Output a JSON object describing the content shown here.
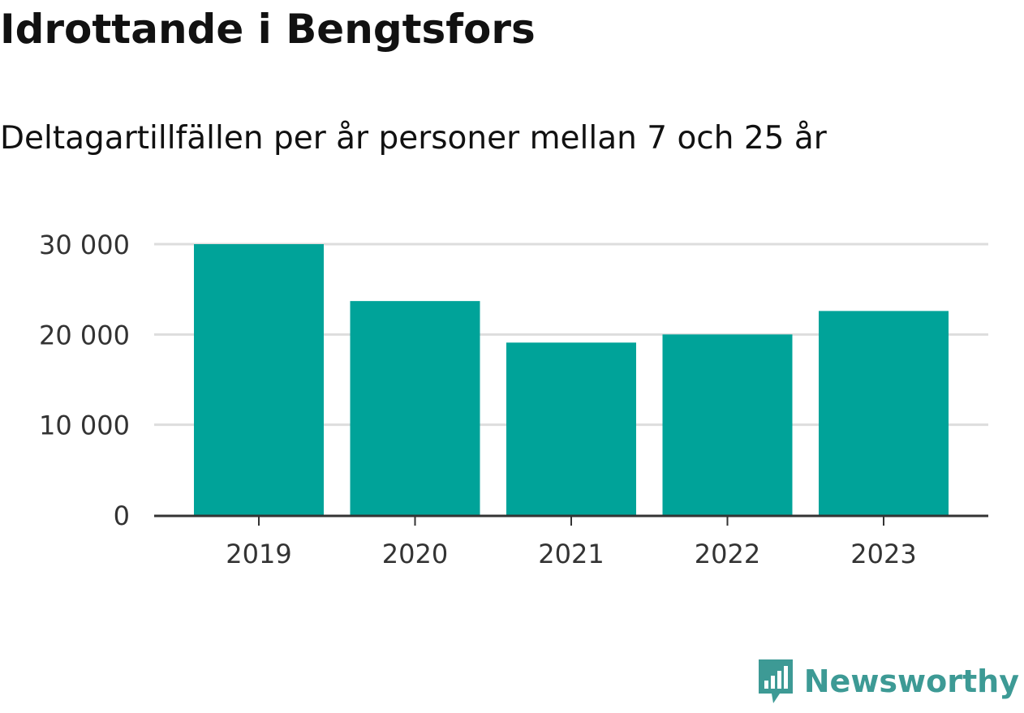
{
  "title": "Idrottande i Bengtsfors",
  "subtitle": "Deltagartillfällen per år personer mellan 7 och 25 år",
  "colors": {
    "bar": "#00a399",
    "grid": "#dddddd",
    "axis": "#333333",
    "brand": "#3d9a95"
  },
  "chart_data": {
    "type": "bar",
    "categories": [
      "2019",
      "2020",
      "2021",
      "2022",
      "2023"
    ],
    "values": [
      30000,
      23700,
      19100,
      20000,
      22600
    ],
    "ylim": [
      0,
      30000
    ],
    "yticks": [
      0,
      10000,
      20000,
      30000
    ],
    "ytick_labels": [
      "0",
      "10 000",
      "20 000",
      "30 000"
    ],
    "grid": true,
    "xlabel": "",
    "ylabel": ""
  },
  "brand": {
    "name": "Newsworthy",
    "icon": "newsworthy-logo-icon"
  }
}
